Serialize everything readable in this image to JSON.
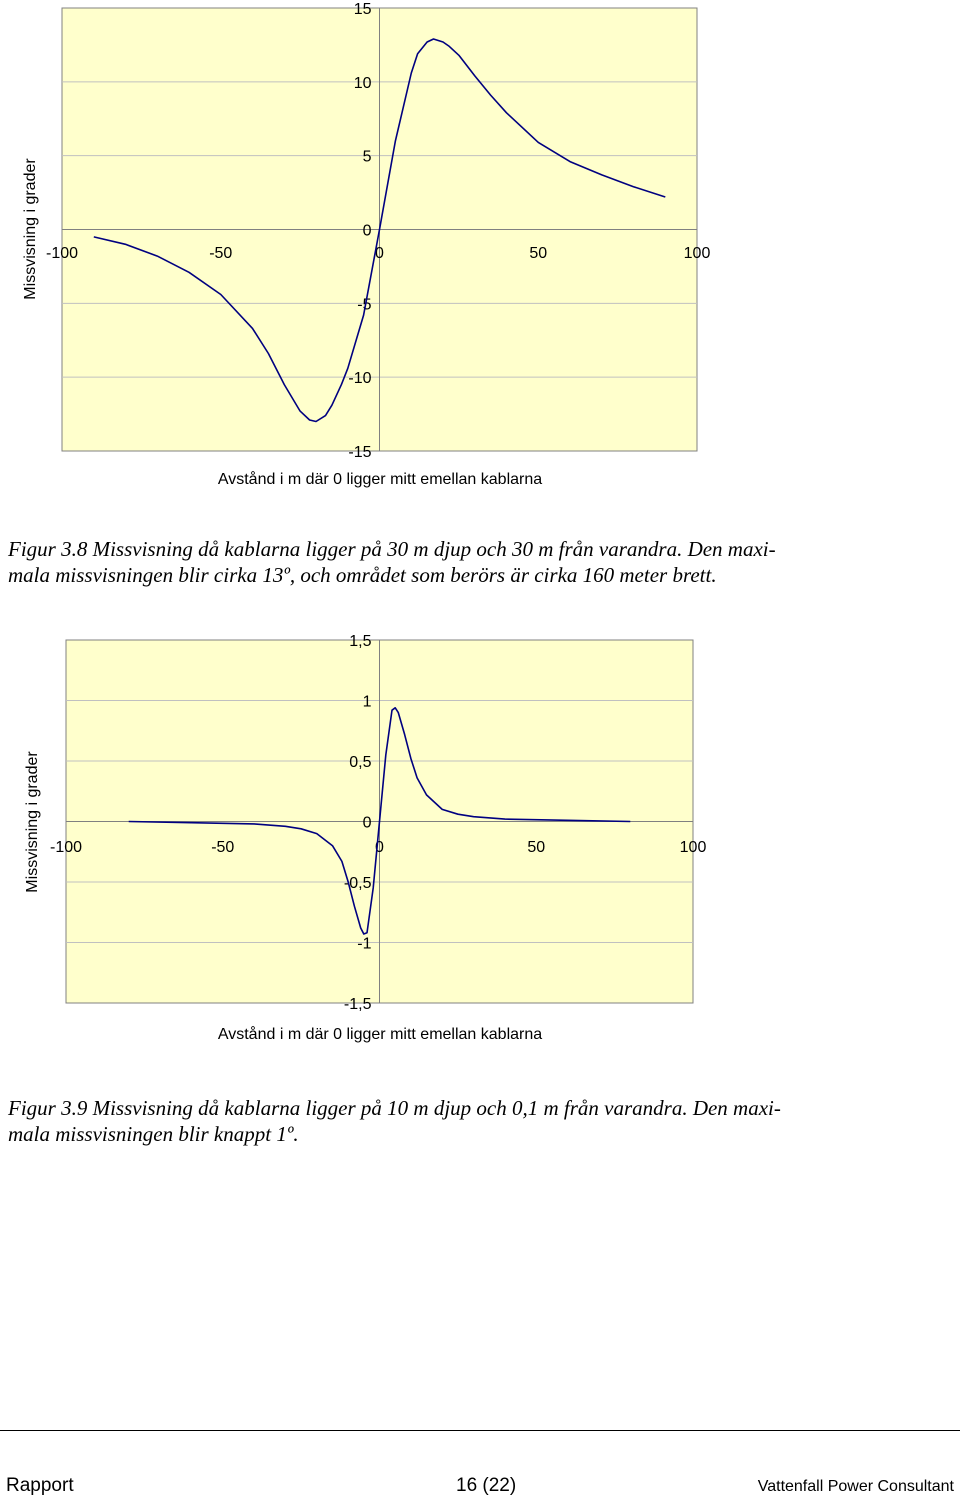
{
  "chart_data": [
    {
      "type": "line",
      "title": "",
      "xlabel": "Avstånd i m där 0 ligger mitt emellan kablarna",
      "ylabel": "Missvisning i grader",
      "xlim": [
        -100,
        100
      ],
      "ylim": [
        -15,
        15
      ],
      "x_ticks": [
        "-100",
        "-50",
        "0",
        "50",
        "100"
      ],
      "y_ticks": [
        "15",
        "10",
        "5",
        "0",
        "-5",
        "-10",
        "-15"
      ],
      "grid": true,
      "plot_background": "#FFFFCC",
      "line_color": "#000080",
      "series": [
        {
          "x": [
            -90,
            -80,
            -70,
            -60,
            -50,
            -40,
            -35,
            -30,
            -25,
            -22,
            -20,
            -17,
            -15,
            -12,
            -10,
            -5,
            0,
            5,
            10,
            12,
            15,
            17,
            20,
            22,
            25,
            30,
            35,
            40,
            50,
            60,
            70,
            80,
            90
          ],
          "values": [
            -0.5,
            -1.0,
            -1.8,
            -2.9,
            -4.4,
            -6.7,
            -8.4,
            -10.5,
            -12.3,
            -12.9,
            -13.0,
            -12.6,
            -11.9,
            -10.5,
            -9.4,
            -5.8,
            0.0,
            6.0,
            10.6,
            11.9,
            12.7,
            12.9,
            12.7,
            12.4,
            11.8,
            10.4,
            9.1,
            7.9,
            5.9,
            4.6,
            3.7,
            2.9,
            2.2
          ]
        }
      ]
    },
    {
      "type": "line",
      "title": "",
      "xlabel": "Avstånd i m där 0 ligger mitt emellan kablarna",
      "ylabel": "Missvisning i grader",
      "xlim": [
        -100,
        100
      ],
      "ylim": [
        -1.5,
        1.5
      ],
      "x_ticks": [
        "-100",
        "-50",
        "0",
        "50",
        "100"
      ],
      "y_ticks": [
        "1,5",
        "1",
        "0,5",
        "0",
        "-0,5",
        "-1",
        "-1,5"
      ],
      "grid": true,
      "plot_background": "#FFFFCC",
      "line_color": "#000080",
      "series": [
        {
          "x": [
            -80,
            -60,
            -40,
            -30,
            -25,
            -20,
            -15,
            -12,
            -10,
            -8,
            -6,
            -5,
            -4,
            -2,
            0,
            2,
            4,
            5,
            6,
            8,
            10,
            12,
            15,
            20,
            25,
            30,
            40,
            60,
            80
          ],
          "values": [
            0.0,
            -0.01,
            -0.02,
            -0.04,
            -0.06,
            -0.1,
            -0.2,
            -0.33,
            -0.5,
            -0.7,
            -0.88,
            -0.93,
            -0.92,
            -0.55,
            0.0,
            0.55,
            0.92,
            0.94,
            0.9,
            0.72,
            0.52,
            0.36,
            0.22,
            0.1,
            0.06,
            0.04,
            0.02,
            0.01,
            0.0
          ]
        }
      ]
    }
  ],
  "captions": [
    {
      "line1": "Figur 3.8 Missvisning då kablarna ligger på 30 m djup och 30 m från varandra. Den maxi-",
      "line2": "mala missvisningen blir cirka 13º, och området som berörs är cirka 160 meter brett."
    },
    {
      "line1": "Figur 3.9 Missvisning då kablarna ligger på 10 m djup och 0,1 m från varandra. Den maxi-",
      "line2": "mala missvisningen blir knappt 1º."
    }
  ],
  "footer": {
    "left": "Rapport",
    "center": "16 (22)",
    "right": "Vattenfall Power Consultant"
  }
}
